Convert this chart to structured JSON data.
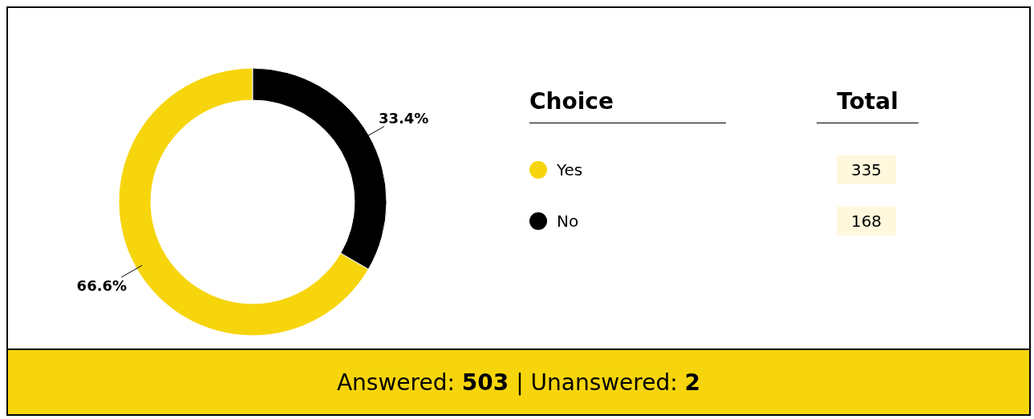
{
  "chart_data": {
    "type": "donut",
    "categories": [
      "Yes",
      "No"
    ],
    "values": [
      66.6,
      33.4
    ],
    "colors": [
      "#f7d50c",
      "#000000"
    ],
    "value_labels": [
      "66.6%",
      "33.4%"
    ],
    "legend": "right",
    "legend_title": "Choice",
    "annotations": [
      "Total",
      "335",
      "168",
      "Answered: 503 | Unanswered: 2"
    ]
  }
}
